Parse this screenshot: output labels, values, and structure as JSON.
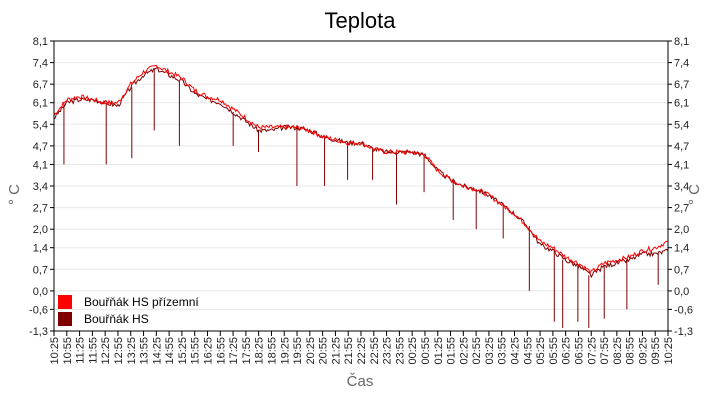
{
  "chart_data": {
    "type": "line",
    "title": "Teplota",
    "xlabel": "Čas",
    "ylabel": "° C",
    "ylim": [
      -1.3,
      8.1
    ],
    "yticks": [
      "-1,3",
      "-0,6",
      "0,0",
      "0,7",
      "1,4",
      "2,0",
      "2,7",
      "3,4",
      "4,1",
      "4,7",
      "5,4",
      "6,1",
      "6,7",
      "7,4",
      "8,1"
    ],
    "x": [
      "10:25",
      "10:55",
      "11:25",
      "11:55",
      "12:25",
      "12:55",
      "13:25",
      "13:55",
      "14:25",
      "14:55",
      "15:25",
      "15:55",
      "16:25",
      "16:55",
      "17:25",
      "17:55",
      "18:25",
      "18:55",
      "19:25",
      "19:55",
      "20:25",
      "20:55",
      "21:25",
      "21:55",
      "22:25",
      "22:55",
      "23:25",
      "23:55",
      "00:25",
      "00:55",
      "01:25",
      "01:55",
      "02:25",
      "02:55",
      "03:25",
      "03:55",
      "04:25",
      "04:55",
      "05:25",
      "05:55",
      "06:25",
      "06:55",
      "07:25",
      "07:55",
      "08:25",
      "08:55",
      "09:25",
      "09:55",
      "10:25"
    ],
    "grid": true,
    "legend": "bottom-left",
    "series": [
      {
        "name": "Bouřňák HS přízemní",
        "color": "#ff0000",
        "values": [
          5.7,
          6.2,
          6.3,
          6.2,
          6.1,
          6.1,
          6.7,
          7.1,
          7.3,
          7.1,
          6.9,
          6.5,
          6.3,
          6.2,
          5.9,
          5.6,
          5.3,
          5.3,
          5.3,
          5.3,
          5.2,
          5.0,
          4.9,
          4.8,
          4.8,
          4.6,
          4.5,
          4.5,
          4.5,
          4.4,
          3.9,
          3.6,
          3.4,
          3.3,
          3.1,
          2.8,
          2.5,
          2.1,
          1.6,
          1.4,
          1.1,
          0.9,
          0.6,
          0.9,
          1.0,
          1.1,
          1.3,
          1.4,
          1.6
        ]
      },
      {
        "name": "Bouřňák HS",
        "color": "#800000",
        "values": [
          5.6,
          6.1,
          6.2,
          6.2,
          6.1,
          6.0,
          6.6,
          7.0,
          7.2,
          7.0,
          6.8,
          6.4,
          6.2,
          6.1,
          5.8,
          5.5,
          5.2,
          5.2,
          5.3,
          5.3,
          5.2,
          5.0,
          4.9,
          4.8,
          4.8,
          4.6,
          4.5,
          4.5,
          4.5,
          4.4,
          3.9,
          3.6,
          3.4,
          3.3,
          3.1,
          2.8,
          2.5,
          2.1,
          1.5,
          1.3,
          1.0,
          0.8,
          0.5,
          0.8,
          0.9,
          1.0,
          1.2,
          1.2,
          1.3
        ],
        "dips": [
          [
            1,
            4.1
          ],
          [
            4,
            4.1
          ],
          [
            6,
            4.3
          ],
          [
            8,
            5.2
          ],
          [
            10,
            4.7
          ],
          [
            14,
            4.7
          ],
          [
            16,
            4.5
          ],
          [
            19,
            3.4
          ],
          [
            21,
            3.4
          ],
          [
            23,
            3.6
          ],
          [
            25,
            3.6
          ],
          [
            27,
            2.8
          ],
          [
            29,
            3.2
          ],
          [
            31,
            2.3
          ],
          [
            33,
            2.0
          ],
          [
            35,
            1.7
          ],
          [
            37,
            0.0
          ],
          [
            39,
            -1.0
          ],
          [
            40,
            -1.2
          ],
          [
            41,
            -1.0
          ],
          [
            42,
            -1.2
          ],
          [
            43,
            -0.9
          ],
          [
            45,
            -0.6
          ],
          [
            47,
            0.2
          ]
        ]
      }
    ]
  }
}
